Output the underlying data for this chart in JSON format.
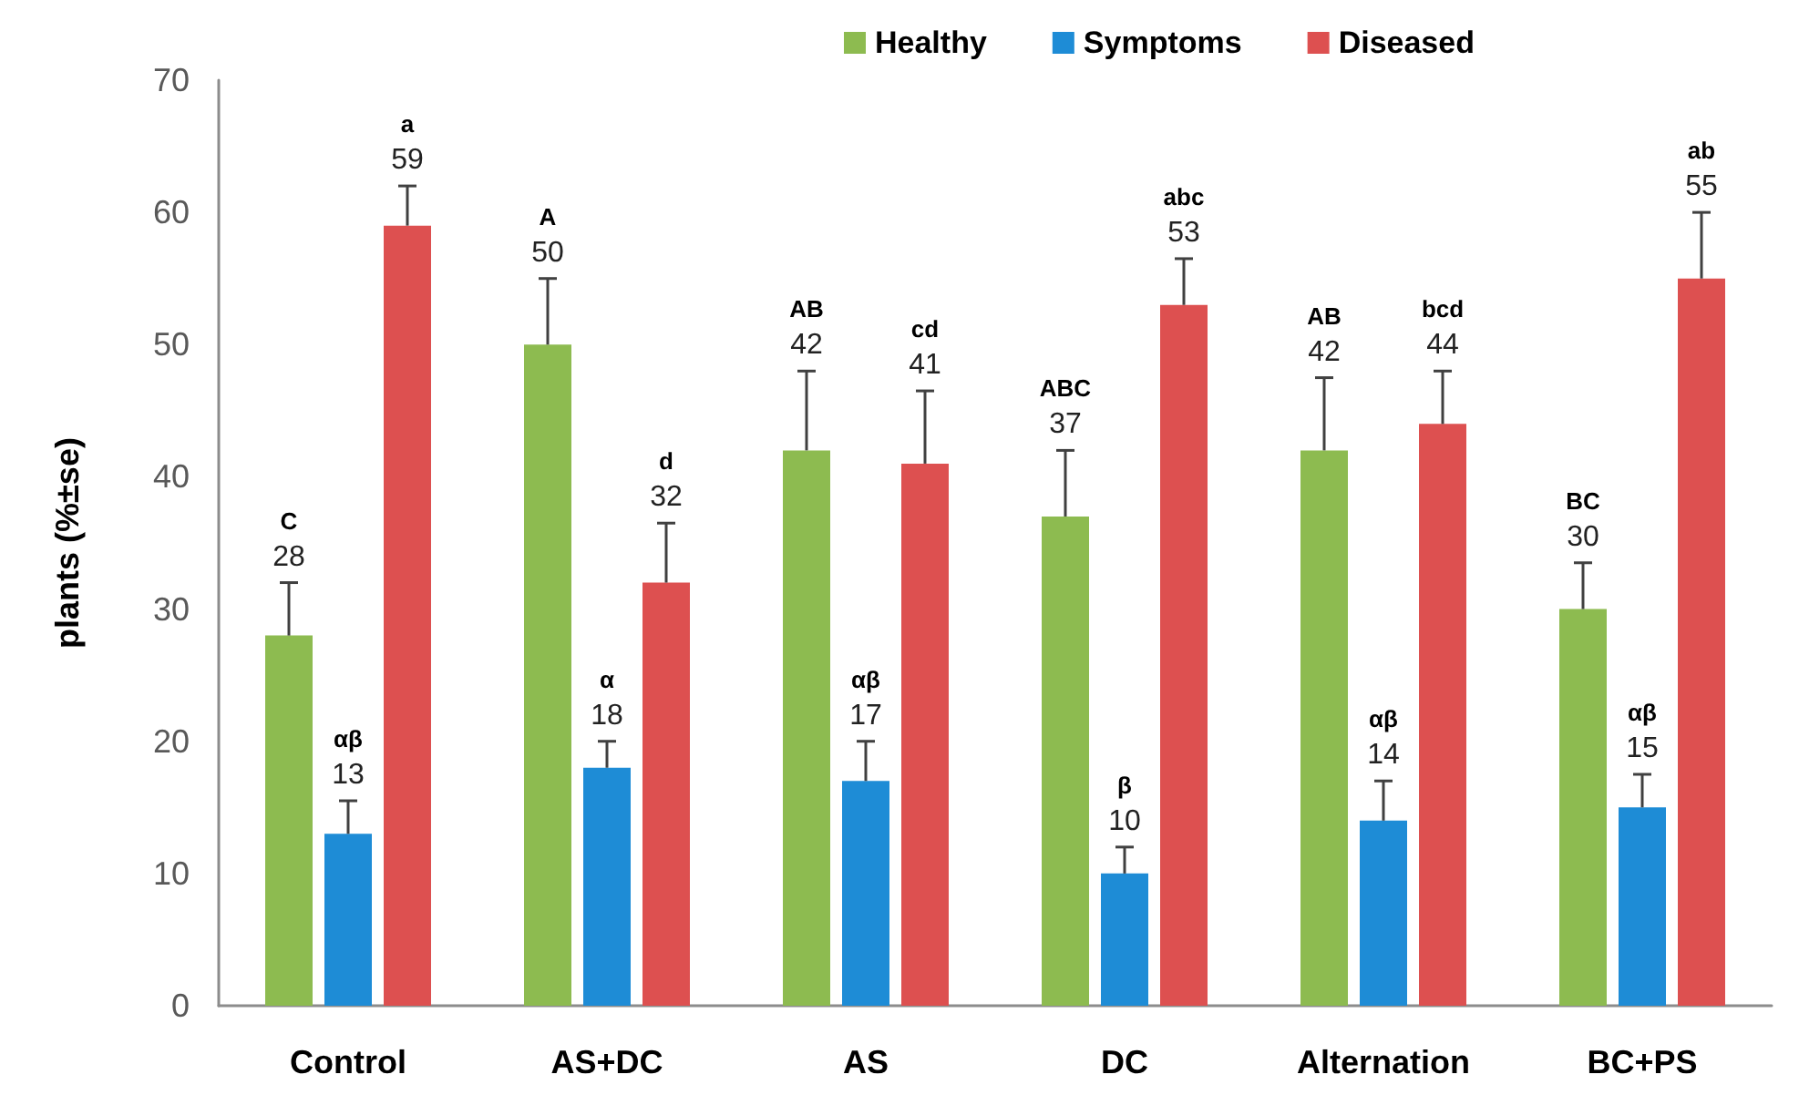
{
  "chart_data": {
    "type": "bar",
    "ylabel": "plants (%±se)",
    "categories": [
      "Control",
      "AS+DC",
      "AS",
      "DC",
      "Alternation",
      "BC+PS"
    ],
    "ylim": [
      0,
      70
    ],
    "yticks": [
      0,
      10,
      20,
      30,
      40,
      50,
      60,
      70
    ],
    "legend": "top",
    "series": [
      {
        "name": "Healthy",
        "color": "#8dbb50",
        "values": [
          28,
          50,
          42,
          37,
          42,
          30
        ],
        "errors": [
          [
            28,
            32
          ],
          [
            50,
            55
          ],
          [
            42,
            48
          ],
          [
            37,
            42
          ],
          [
            42,
            47.5
          ],
          [
            30,
            33.5
          ]
        ],
        "value_labels": [
          "C\n28",
          "A\n50",
          "AB\n42",
          "ABC\n37",
          "AB\n42",
          "BC\n30"
        ]
      },
      {
        "name": "Symptoms",
        "color": "#1e8cd6",
        "values": [
          13,
          18,
          17,
          10,
          14,
          15
        ],
        "errors": [
          [
            13,
            15.5
          ],
          [
            18,
            20
          ],
          [
            17,
            20
          ],
          [
            10,
            12
          ],
          [
            14,
            17
          ],
          [
            15,
            17.5
          ]
        ],
        "value_labels": [
          "αβ\n13",
          "α\n18",
          "αβ\n17",
          "β\n10",
          "αβ\n14",
          "αβ\n15"
        ]
      },
      {
        "name": "Diseased",
        "color": "#dd5050",
        "values": [
          59,
          32,
          41,
          53,
          44,
          55
        ],
        "errors": [
          [
            59,
            62
          ],
          [
            32,
            36.5
          ],
          [
            41,
            46.5
          ],
          [
            53,
            56.5
          ],
          [
            44,
            48
          ],
          [
            55,
            60
          ]
        ],
        "value_labels": [
          "a\n59",
          "d\n32",
          "cd\n41",
          "abc\n53",
          "bcd\n44",
          "ab\n55"
        ]
      }
    ]
  }
}
